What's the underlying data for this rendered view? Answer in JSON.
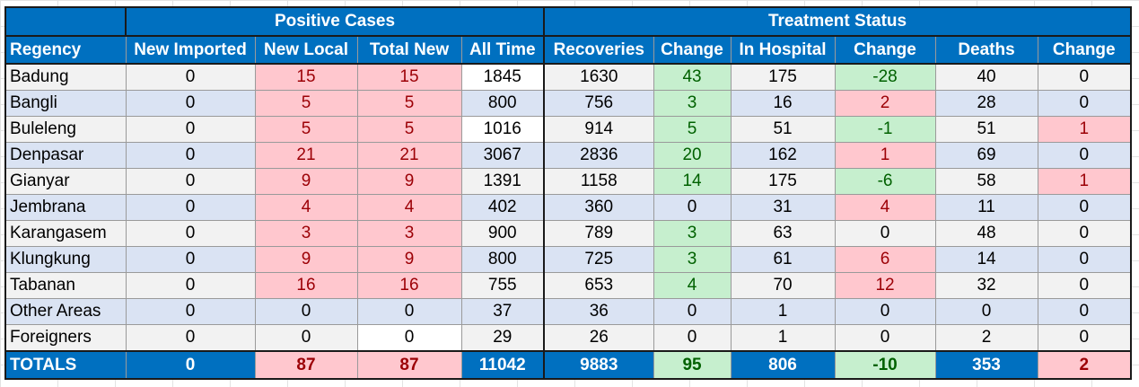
{
  "header": {
    "group_positive": "Positive Cases",
    "group_treatment": "Treatment Status",
    "columns": [
      "Regency",
      "New Imported",
      "New Local",
      "Total New",
      "All Time",
      "Recoveries",
      "Change",
      "In Hospital",
      "Change",
      "Deaths",
      "Change"
    ]
  },
  "colors": {
    "header_blue": "#0070c0",
    "increase_red_fill": "#ffc7ce",
    "increase_red_text": "#9c0006",
    "decrease_green_fill": "#c6efce",
    "decrease_green_text": "#006100",
    "row_band_gray": "#f2f2f2",
    "row_band_blue": "#dae3f3"
  },
  "rows": [
    {
      "regency": "Badung",
      "new_imported": "0",
      "new_local": "15",
      "total_new": "15",
      "all_time": "1845",
      "recoveries": "1630",
      "recoveries_change": "43",
      "in_hospital": "175",
      "hospital_change": "-28",
      "deaths": "40",
      "deaths_change": "0"
    },
    {
      "regency": "Bangli",
      "new_imported": "0",
      "new_local": "5",
      "total_new": "5",
      "all_time": "800",
      "recoveries": "756",
      "recoveries_change": "3",
      "in_hospital": "16",
      "hospital_change": "2",
      "deaths": "28",
      "deaths_change": "0"
    },
    {
      "regency": "Buleleng",
      "new_imported": "0",
      "new_local": "5",
      "total_new": "5",
      "all_time": "1016",
      "recoveries": "914",
      "recoveries_change": "5",
      "in_hospital": "51",
      "hospital_change": "-1",
      "deaths": "51",
      "deaths_change": "1"
    },
    {
      "regency": "Denpasar",
      "new_imported": "0",
      "new_local": "21",
      "total_new": "21",
      "all_time": "3067",
      "recoveries": "2836",
      "recoveries_change": "20",
      "in_hospital": "162",
      "hospital_change": "1",
      "deaths": "69",
      "deaths_change": "0"
    },
    {
      "regency": "Gianyar",
      "new_imported": "0",
      "new_local": "9",
      "total_new": "9",
      "all_time": "1391",
      "recoveries": "1158",
      "recoveries_change": "14",
      "in_hospital": "175",
      "hospital_change": "-6",
      "deaths": "58",
      "deaths_change": "1"
    },
    {
      "regency": "Jembrana",
      "new_imported": "0",
      "new_local": "4",
      "total_new": "4",
      "all_time": "402",
      "recoveries": "360",
      "recoveries_change": "0",
      "in_hospital": "31",
      "hospital_change": "4",
      "deaths": "11",
      "deaths_change": "0"
    },
    {
      "regency": "Karangasem",
      "new_imported": "0",
      "new_local": "3",
      "total_new": "3",
      "all_time": "900",
      "recoveries": "789",
      "recoveries_change": "3",
      "in_hospital": "63",
      "hospital_change": "0",
      "deaths": "48",
      "deaths_change": "0"
    },
    {
      "regency": "Klungkung",
      "new_imported": "0",
      "new_local": "9",
      "total_new": "9",
      "all_time": "800",
      "recoveries": "725",
      "recoveries_change": "3",
      "in_hospital": "61",
      "hospital_change": "6",
      "deaths": "14",
      "deaths_change": "0"
    },
    {
      "regency": "Tabanan",
      "new_imported": "0",
      "new_local": "16",
      "total_new": "16",
      "all_time": "755",
      "recoveries": "653",
      "recoveries_change": "4",
      "in_hospital": "70",
      "hospital_change": "12",
      "deaths": "32",
      "deaths_change": "0"
    },
    {
      "regency": "Other Areas",
      "new_imported": "0",
      "new_local": "0",
      "total_new": "0",
      "all_time": "37",
      "recoveries": "36",
      "recoveries_change": "0",
      "in_hospital": "1",
      "hospital_change": "0",
      "deaths": "0",
      "deaths_change": "0"
    },
    {
      "regency": "Foreigners",
      "new_imported": "0",
      "new_local": "0",
      "total_new": "0",
      "all_time": "29",
      "recoveries": "26",
      "recoveries_change": "0",
      "in_hospital": "1",
      "hospital_change": "0",
      "deaths": "2",
      "deaths_change": "0"
    }
  ],
  "totals": {
    "label": "TOTALS",
    "new_imported": "0",
    "new_local": "87",
    "total_new": "87",
    "all_time": "11042",
    "recoveries": "9883",
    "recoveries_change": "95",
    "in_hospital": "806",
    "hospital_change": "-10",
    "deaths": "353",
    "deaths_change": "2"
  }
}
